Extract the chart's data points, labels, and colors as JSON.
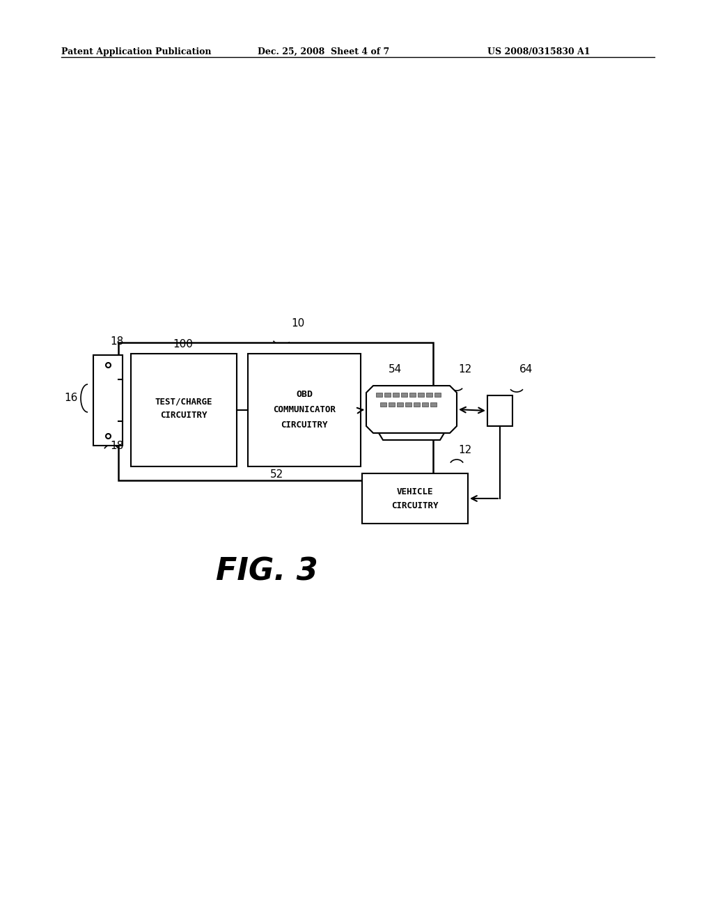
{
  "bg_color": "#ffffff",
  "text_color": "#000000",
  "header_left": "Patent Application Publication",
  "header_mid": "Dec. 25, 2008  Sheet 4 of 7",
  "header_right": "US 2008/0315830 A1",
  "fig_label": "FIG. 3"
}
